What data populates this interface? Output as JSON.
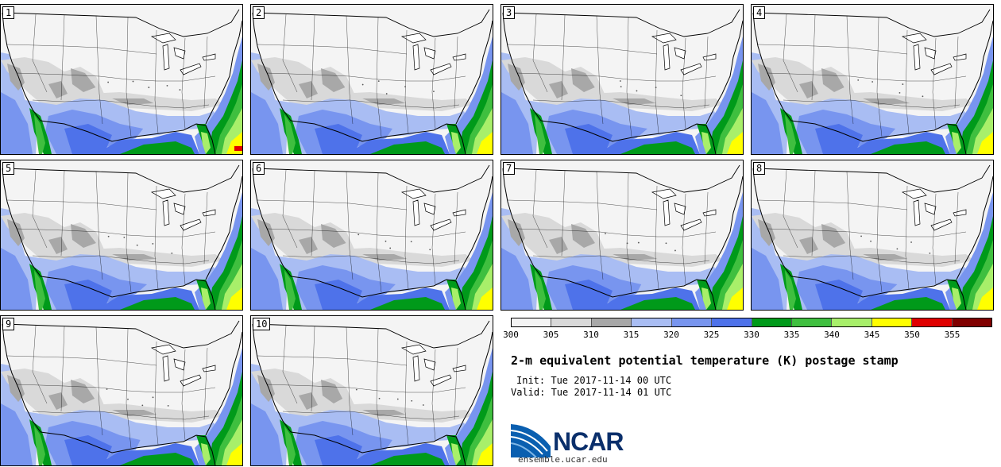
{
  "title": "2-m equivalent potential temperature (K) postage stamp",
  "init": "Init: Tue 2017-11-14 00 UTC",
  "valid": "Valid: Tue 2017-11-14 01 UTC",
  "logo": {
    "name": "NCAR",
    "url": "ensemble.ucar.edu"
  },
  "panels": [
    {
      "label": "1"
    },
    {
      "label": "2"
    },
    {
      "label": "3"
    },
    {
      "label": "4"
    },
    {
      "label": "5"
    },
    {
      "label": "6"
    },
    {
      "label": "7"
    },
    {
      "label": "8"
    },
    {
      "label": "9"
    },
    {
      "label": "10"
    }
  ],
  "colorbar": {
    "ticks": [
      "300",
      "305",
      "310",
      "315",
      "320",
      "325",
      "330",
      "335",
      "340",
      "345",
      "350",
      "355"
    ],
    "colors": [
      "#f4f4f4",
      "#d9d9d9",
      "#a8a8a8",
      "#a9bdf3",
      "#7895ef",
      "#4e72ea",
      "#009a1a",
      "#3fbf3f",
      "#a8ef6a",
      "#ffff00",
      "#e00000",
      "#800000"
    ]
  }
}
